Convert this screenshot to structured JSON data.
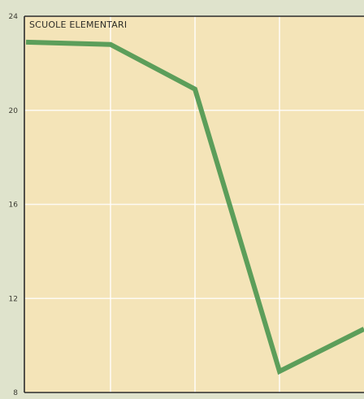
{
  "chart_data": {
    "type": "line",
    "title": "SCUOLE ELEMENTARI",
    "xlabel": "",
    "ylabel": "",
    "ylim": [
      8,
      24
    ],
    "yticks": [
      8,
      12,
      16,
      20,
      24
    ],
    "x": [
      0,
      1,
      2,
      3,
      4
    ],
    "xlim": [
      0,
      4
    ],
    "series": [
      {
        "values": [
          22.9,
          22.8,
          20.9,
          8.9,
          10.7
        ]
      }
    ],
    "grid": true,
    "colors": {
      "plot_background": "#f4e4b8",
      "page_background": "#dfe3cc",
      "line": "#5c9e5a",
      "grid": "#ffffff",
      "axis": "#2c2c2c"
    }
  }
}
